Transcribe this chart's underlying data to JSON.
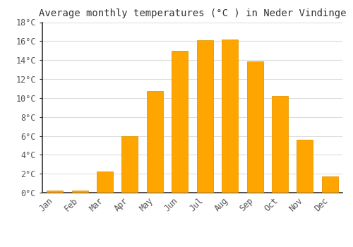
{
  "title": "Average monthly temperatures (°C ) in Neder Vindinge",
  "months": [
    "Jan",
    "Feb",
    "Mar",
    "Apr",
    "May",
    "Jun",
    "Jul",
    "Aug",
    "Sep",
    "Oct",
    "Nov",
    "Dec"
  ],
  "values": [
    0.2,
    0.2,
    2.2,
    6.0,
    10.7,
    15.0,
    16.1,
    16.2,
    13.9,
    10.2,
    5.6,
    1.7
  ],
  "bar_color": "#FFA500",
  "bar_edge_color": "#E69500",
  "ylim": [
    0,
    18
  ],
  "yticks": [
    0,
    2,
    4,
    6,
    8,
    10,
    12,
    14,
    16,
    18
  ],
  "ytick_labels": [
    "0°C",
    "2°C",
    "4°C",
    "6°C",
    "8°C",
    "10°C",
    "12°C",
    "14°C",
    "16°C",
    "18°C"
  ],
  "background_color": "#ffffff",
  "plot_bg_color": "#ffffff",
  "grid_color": "#dddddd",
  "spine_color": "#333333",
  "title_fontsize": 10,
  "tick_fontsize": 8.5,
  "tick_color": "#555555",
  "title_color": "#333333",
  "bar_width": 0.65
}
